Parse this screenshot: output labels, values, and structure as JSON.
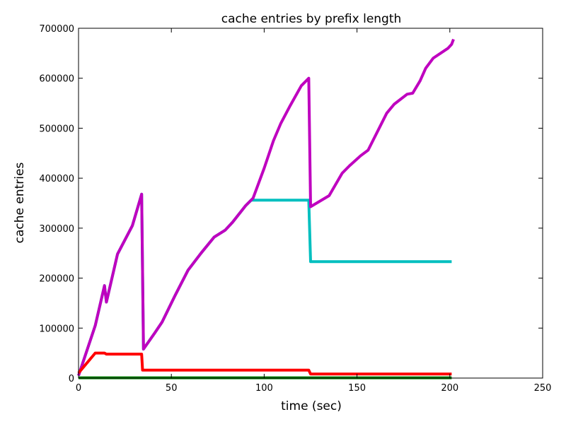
{
  "chart_data": {
    "type": "line",
    "title": "cache entries by prefix length",
    "xlabel": "time (sec)",
    "ylabel": "cache entries",
    "xlim": [
      0,
      250
    ],
    "ylim": [
      0,
      700000
    ],
    "xticks": [
      0,
      50,
      100,
      150,
      200,
      250
    ],
    "yticks": [
      0,
      100000,
      200000,
      300000,
      400000,
      500000,
      600000,
      700000
    ],
    "grid": false,
    "series": [
      {
        "color": "#00bfbf",
        "points": [
          [
            0,
            5000
          ],
          [
            9,
            105000
          ],
          [
            14,
            185000
          ],
          [
            15,
            152000
          ],
          [
            21,
            248000
          ],
          [
            29,
            305000
          ],
          [
            34,
            368000
          ],
          [
            35,
            58000
          ],
          [
            41,
            90000
          ],
          [
            45,
            112000
          ],
          [
            52,
            165000
          ],
          [
            59,
            216000
          ],
          [
            66,
            250000
          ],
          [
            73,
            282000
          ],
          [
            79,
            296000
          ],
          [
            83,
            312000
          ],
          [
            90,
            345000
          ],
          [
            93,
            356000
          ],
          [
            124,
            356000
          ],
          [
            125,
            233000
          ],
          [
            201,
            233000
          ]
        ]
      },
      {
        "color": "#bf00bf",
        "points": [
          [
            0,
            5000
          ],
          [
            9,
            105000
          ],
          [
            14,
            185000
          ],
          [
            15,
            152000
          ],
          [
            21,
            248000
          ],
          [
            29,
            305000
          ],
          [
            34,
            368000
          ],
          [
            35,
            58000
          ],
          [
            41,
            90000
          ],
          [
            45,
            112000
          ],
          [
            52,
            165000
          ],
          [
            59,
            216000
          ],
          [
            66,
            250000
          ],
          [
            73,
            282000
          ],
          [
            79,
            296000
          ],
          [
            83,
            312000
          ],
          [
            90,
            345000
          ],
          [
            94,
            360000
          ],
          [
            100,
            420000
          ],
          [
            105,
            475000
          ],
          [
            109,
            510000
          ],
          [
            114,
            545000
          ],
          [
            120,
            585000
          ],
          [
            124,
            600000
          ],
          [
            125,
            343000
          ],
          [
            135,
            365000
          ],
          [
            142,
            410000
          ],
          [
            146,
            425000
          ],
          [
            152,
            445000
          ],
          [
            156,
            456000
          ],
          [
            166,
            530000
          ],
          [
            170,
            548000
          ],
          [
            177,
            568000
          ],
          [
            180,
            570000
          ],
          [
            184,
            595000
          ],
          [
            187,
            620000
          ],
          [
            191,
            640000
          ],
          [
            199,
            660000
          ],
          [
            201,
            668000
          ],
          [
            202,
            678000
          ]
        ]
      },
      {
        "color": "#ff0000",
        "points": [
          [
            0,
            10000
          ],
          [
            9,
            50000
          ],
          [
            14,
            50000
          ],
          [
            15,
            48000
          ],
          [
            34,
            48000
          ],
          [
            34.5,
            16000
          ],
          [
            124,
            16000
          ],
          [
            125,
            8000
          ],
          [
            201,
            8000
          ]
        ]
      },
      {
        "color": "#007f00",
        "points": [
          [
            0,
            600
          ],
          [
            201,
            600
          ]
        ]
      }
    ]
  }
}
